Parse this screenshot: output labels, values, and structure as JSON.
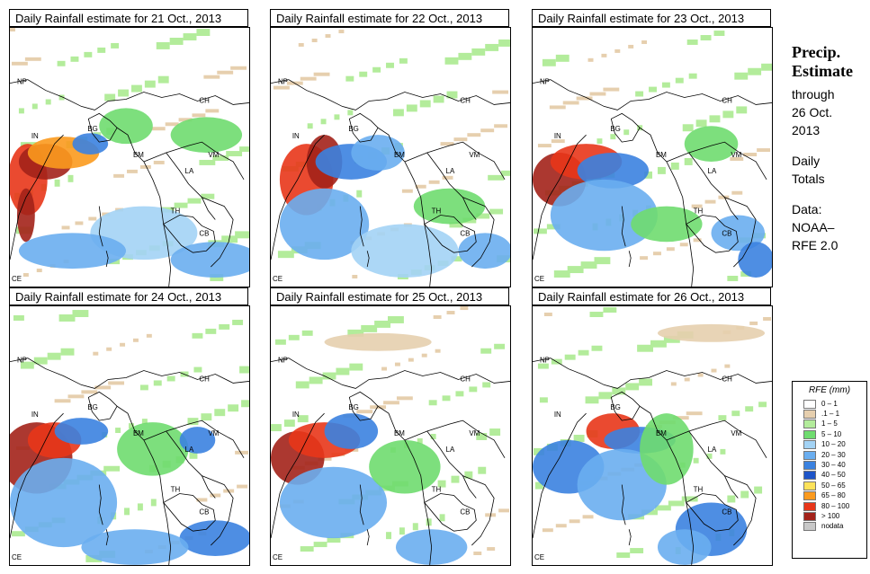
{
  "panels": [
    {
      "title": "Daily Rainfall estimate for  21 Oct., 2013"
    },
    {
      "title": "Daily Rainfall estimate for  22 Oct., 2013"
    },
    {
      "title": "Daily Rainfall estimate for  23 Oct., 2013"
    },
    {
      "title": "Daily Rainfall estimate for  24 Oct., 2013"
    },
    {
      "title": "Daily Rainfall estimate for  25 Oct., 2013"
    },
    {
      "title": "Daily Rainfall estimate for  26 Oct., 2013"
    }
  ],
  "country_labels": [
    "NP",
    "CH",
    "IN",
    "BG",
    "BM",
    "VM",
    "LA",
    "TH",
    "CB",
    "CE"
  ],
  "sidebar": {
    "heading1": "Precip.",
    "heading2": "Estimate",
    "line1": "through",
    "line2": "26 Oct.",
    "line3": "2013",
    "line4": "Daily",
    "line5": "Totals",
    "line6": "Data:",
    "line7": "NOAA–",
    "line8": "RFE 2.0"
  },
  "legend": {
    "title": "RFE (mm)",
    "items": [
      {
        "label": "0 – 1",
        "color": "#ffffff"
      },
      {
        "label": ".1 – 1",
        "color": "#e6cfae"
      },
      {
        "label": "1 – 5",
        "color": "#b3ec9b"
      },
      {
        "label": "5 – 10",
        "color": "#6fdc6f"
      },
      {
        "label": "10 – 20",
        "color": "#a3d3f5"
      },
      {
        "label": "20 – 30",
        "color": "#6aaef0"
      },
      {
        "label": "30 – 40",
        "color": "#3b82e0"
      },
      {
        "label": "40 – 50",
        "color": "#1e55c8"
      },
      {
        "label": "50 – 65",
        "color": "#fde25a"
      },
      {
        "label": "65 – 80",
        "color": "#fb9a1e"
      },
      {
        "label": "80 – 100",
        "color": "#e8361a"
      },
      {
        "label": "> 100",
        "color": "#a3221a"
      },
      {
        "label": "nodata",
        "color": "#c8c8c8"
      }
    ]
  }
}
